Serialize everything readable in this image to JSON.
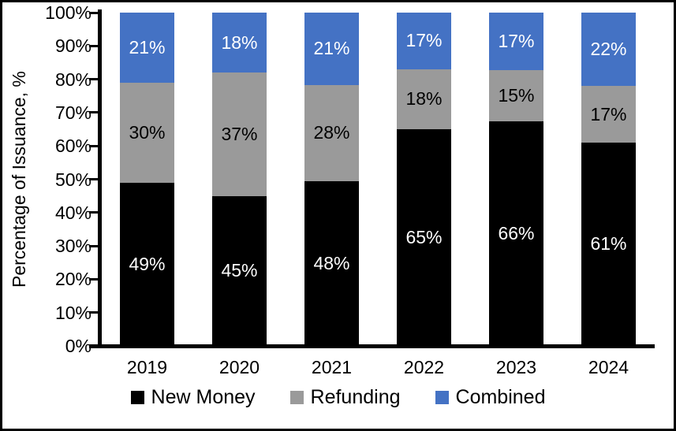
{
  "frame": {
    "background": "#FFFFFF",
    "border_color": "#000000"
  },
  "chart_data": {
    "type": "bar",
    "stacked": true,
    "title": "",
    "xlabel": "",
    "ylabel": "Percentage of Issuance, %",
    "ylim": [
      0,
      100
    ],
    "y_tick_labels": [
      "0%",
      "10%",
      "20%",
      "30%",
      "40%",
      "50%",
      "60%",
      "70%",
      "80%",
      "90%",
      "100%"
    ],
    "categories": [
      "2019",
      "2020",
      "2021",
      "2022",
      "2023",
      "2024"
    ],
    "series": [
      {
        "name": "New Money",
        "color": "#000000",
        "label_color": "#FFFFFF",
        "values": [
          49,
          45,
          48,
          65,
          66,
          61
        ]
      },
      {
        "name": "Refunding",
        "color": "#9A9A9A",
        "label_color": "#000000",
        "values": [
          30,
          37,
          28,
          18,
          15,
          17
        ]
      },
      {
        "name": "Combined",
        "color": "#4472C4",
        "label_color": "#FFFFFF",
        "values": [
          21,
          18,
          21,
          17,
          17,
          22
        ]
      }
    ],
    "value_suffix": "%",
    "grid": false,
    "legend_position": "bottom",
    "data_labels": "inside-center"
  }
}
